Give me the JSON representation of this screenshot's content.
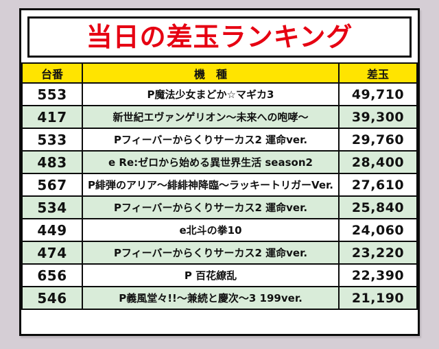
{
  "title": "当日の差玉ランキング",
  "table": {
    "headers": [
      "台番",
      "機　種",
      "差玉"
    ],
    "rows": [
      {
        "no": "553",
        "machine": "P魔法少女まどか☆マギカ3",
        "value": "49,710"
      },
      {
        "no": "417",
        "machine": "新世紀エヴァンゲリオン～未来への咆哮～",
        "value": "39,300"
      },
      {
        "no": "533",
        "machine": "Pフィーバーからくりサーカス2 運命ver.",
        "value": "29,760"
      },
      {
        "no": "483",
        "machine": "e Re:ゼロから始める異世界生活 season2",
        "value": "28,400"
      },
      {
        "no": "567",
        "machine": "P緋弾のアリア～緋緋神降臨～ラッキートリガーVer.",
        "value": "27,610"
      },
      {
        "no": "534",
        "machine": "Pフィーバーからくりサーカス2 運命ver.",
        "value": "25,840"
      },
      {
        "no": "449",
        "machine": "e北斗の拳10",
        "value": "24,060"
      },
      {
        "no": "474",
        "machine": "Pフィーバーからくりサーカス2 運命ver.",
        "value": "23,220"
      },
      {
        "no": "656",
        "machine": "P 百花繚乱",
        "value": "22,390"
      },
      {
        "no": "546",
        "machine": "P義風堂々!!～兼続と慶次～3 199ver.",
        "value": "21,190"
      }
    ]
  },
  "colors": {
    "page_bg": "#d5ced5",
    "board_bg": "#ffffff",
    "border": "#0b0b0b",
    "title_text": "#e60012",
    "header_bg": "#ffe400",
    "row_bg": "#ffffff",
    "row_alt_bg": "#d9ecd9",
    "text": "#111111"
  },
  "chart_data": {
    "type": "table",
    "title": "当日の差玉ランキング",
    "columns": [
      "台番",
      "機種",
      "差玉"
    ],
    "rows": [
      [
        553,
        "P魔法少女まどか☆マギカ3",
        49710
      ],
      [
        417,
        "新世紀エヴァンゲリオン～未来への咆哮～",
        39300
      ],
      [
        533,
        "Pフィーバーからくりサーカス2 運命ver.",
        29760
      ],
      [
        483,
        "e Re:ゼロから始める異世界生活 season2",
        28400
      ],
      [
        567,
        "P緋弾のアリア～緋緋神降臨～ラッキートリガーVer.",
        27610
      ],
      [
        534,
        "Pフィーバーからくりサーカス2 運命ver.",
        25840
      ],
      [
        449,
        "e北斗の拳10",
        24060
      ],
      [
        474,
        "Pフィーバーからくりサーカス2 運命ver.",
        23220
      ],
      [
        656,
        "P 百花繚乱",
        22390
      ],
      [
        546,
        "P義風堂々!!～兼続と慶次～3 199ver.",
        21190
      ]
    ]
  }
}
